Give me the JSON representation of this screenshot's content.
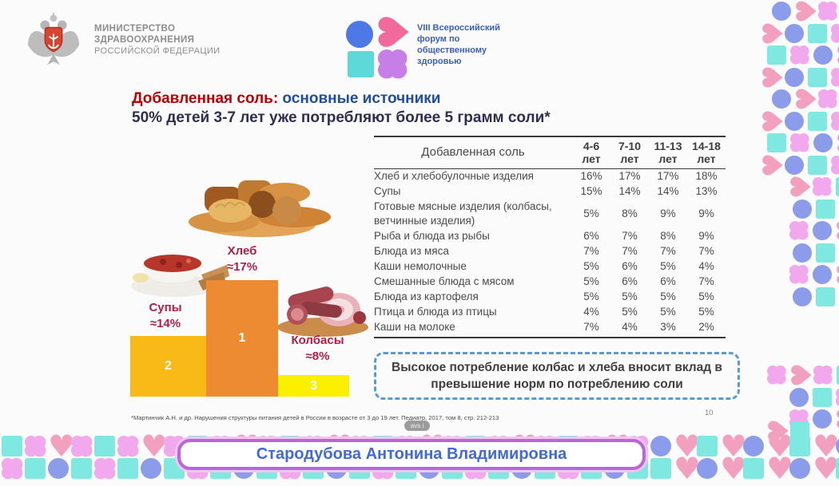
{
  "header": {
    "ministry": {
      "line1": "МИНИСТЕРСТВО",
      "line2": "ЗДРАВООХРАНЕНИЯ",
      "line3": "РОССИЙСКОЙ ФЕДЕРАЦИИ"
    },
    "forum": {
      "lines": [
        "VIII Всероссийский",
        "форум по",
        "общественному",
        "здоровью"
      ]
    }
  },
  "slide": {
    "title_red": "Добавленная соль:",
    "title_blue": " основные источники",
    "subtitle": "50% детей 3-7 лет уже потребляют более 5 грамм соли*"
  },
  "chart_data": {
    "type": "bar",
    "title": "Основные источники добавленной соли (подиум)",
    "categories": [
      "Супы",
      "Хлеб",
      "Колбасы"
    ],
    "values": [
      14,
      17,
      8
    ],
    "bars": [
      {
        "label": "Супы",
        "value_label": "≈14%",
        "rank": "2",
        "color": "#f9b916"
      },
      {
        "label": "Хлеб",
        "value_label": "≈17%",
        "rank": "1",
        "color": "#ed8b33"
      },
      {
        "label": "Колбасы",
        "value_label": "≈8%",
        "rank": "3",
        "color": "#faf000"
      }
    ]
  },
  "table": {
    "title": "Добавленная соль",
    "columns": [
      "4-6 лет",
      "7-10 лет",
      "11-13 лет",
      "14-18 лет"
    ],
    "rows": [
      {
        "label": "Хлеб и хлебобулочные изделия",
        "values": [
          "16%",
          "17%",
          "17%",
          "18%"
        ]
      },
      {
        "label": "Супы",
        "values": [
          "15%",
          "14%",
          "14%",
          "13%"
        ]
      },
      {
        "label": "Готовые мясные изделия (колбасы, ветчинные изделия)",
        "values": [
          "5%",
          "8%",
          "9%",
          "9%"
        ]
      },
      {
        "label": "Рыба и блюда из рыбы",
        "values": [
          "6%",
          "7%",
          "8%",
          "9%"
        ]
      },
      {
        "label": "Блюда из мяса",
        "values": [
          "7%",
          "7%",
          "7%",
          "7%"
        ]
      },
      {
        "label": "Каши немолочные",
        "values": [
          "5%",
          "6%",
          "5%",
          "4%"
        ]
      },
      {
        "label": "Смешанные блюда с мясом",
        "values": [
          "5%",
          "6%",
          "6%",
          "7%"
        ]
      },
      {
        "label": "Блюда из картофеля",
        "values": [
          "5%",
          "5%",
          "5%",
          "5%"
        ]
      },
      {
        "label": "Птица и блюда из птицы",
        "values": [
          "4%",
          "5%",
          "5%",
          "5%"
        ]
      },
      {
        "label": "Каши на молоке",
        "values": [
          "7%",
          "4%",
          "3%",
          "2%"
        ]
      }
    ]
  },
  "callout": {
    "text": "Высокое потребление колбас и хлеба вносит вклад в превышение норм по потреблению соли"
  },
  "footnote": "*Мартинчик А.Н. и др. Нарушения структуры питания детей в России в возрасте от 3 до 19 лет. Педиатр, 2017, том 8, стр. 212-213",
  "page_number": "10",
  "watermark": "avs i",
  "banner": {
    "name": "Стародубова Антонина Владимировна"
  },
  "colors": {
    "title_red": "#c00000",
    "title_blue": "#1f4e9c",
    "callout_border": "#5b9bd5",
    "banner_border": "#b767dc",
    "banner_name_blue": "#4169d9",
    "bar_label_red": "#b01e46",
    "decor": {
      "circle": "#8b9cea",
      "heart": "#f2a0bd",
      "clover": "#f2a8ec",
      "square": "#7fe8e0"
    },
    "forum_logo": {
      "circle": "#4d79e6",
      "heart": "#f06a9a",
      "square": "#5ed9d9",
      "clover": "#c77fe8"
    }
  }
}
